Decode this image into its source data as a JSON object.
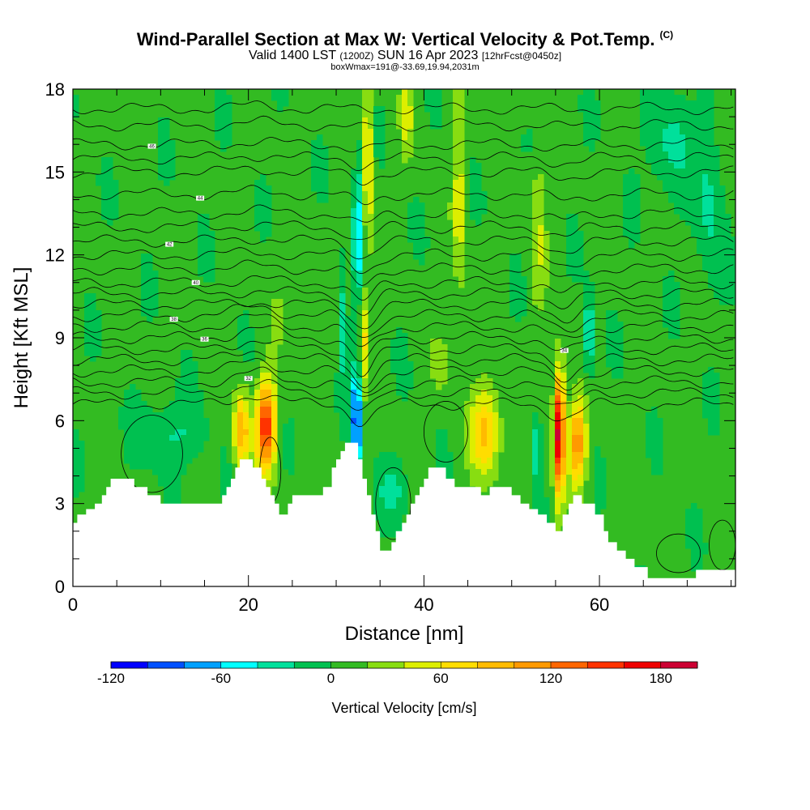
{
  "title": {
    "main": "Wind-Parallel Section at Max W: Vertical Velocity & Pot.Temp.",
    "copyright": "(C)",
    "valid_a": "Valid 1400 LST",
    "valid_z": "(1200Z)",
    "valid_b": "SUN 16 Apr 2023",
    "valid_fcst": "[12hrFcst@0450z]",
    "box": "boxWmax=191@-33.69,19.94,2031m"
  },
  "chart_data": {
    "type": "heatmap",
    "xlabel": "Distance [nm]",
    "ylabel": "Height [Kft MSL]",
    "xlim": [
      0,
      75.5
    ],
    "ylim": [
      0,
      18
    ],
    "x_ticks": [
      "0",
      "20",
      "40",
      "60"
    ],
    "y_ticks": [
      "0",
      "3",
      "6",
      "9",
      "12",
      "15",
      "18"
    ],
    "colorbar": {
      "title": "Vertical Velocity [cm/s]",
      "tick_labels": [
        "-120",
        "-60",
        "0",
        "60",
        "120",
        "180"
      ],
      "range": [
        -120,
        200
      ],
      "colors": [
        "#0000ff",
        "#0050ff",
        "#00a0ff",
        "#00ffff",
        "#00e09b",
        "#00c050",
        "#33bb22",
        "#88dd11",
        "#ddee00",
        "#ffdd00",
        "#ffbb00",
        "#ff9900",
        "#ff6600",
        "#ff3300",
        "#ee0000",
        "#cc0033"
      ]
    },
    "vv_features": [
      {
        "x": 32.3,
        "y": 6.0,
        "wx": 0.5,
        "wy": 2.0,
        "value": -120
      },
      {
        "x": 32.5,
        "y": 13.0,
        "wx": 0.6,
        "wy": 2.5,
        "value": -60
      },
      {
        "x": 33.6,
        "y": 15.5,
        "wx": 0.5,
        "wy": 3.5,
        "value": 70
      },
      {
        "x": 33.1,
        "y": 9.0,
        "wx": 0.5,
        "wy": 1.8,
        "value": 60
      },
      {
        "x": 22.0,
        "y": 5.8,
        "wx": 1.1,
        "wy": 1.6,
        "value": 150
      },
      {
        "x": 19.2,
        "y": 5.6,
        "wx": 0.9,
        "wy": 1.4,
        "value": 95
      },
      {
        "x": 47.0,
        "y": 5.6,
        "wx": 1.7,
        "wy": 1.6,
        "value": 80
      },
      {
        "x": 55.4,
        "y": 5.6,
        "wx": 0.6,
        "wy": 2.2,
        "value": 190
      },
      {
        "x": 57.5,
        "y": 5.2,
        "wx": 1.0,
        "wy": 1.5,
        "value": 110
      },
      {
        "x": 52.8,
        "y": 5.0,
        "wx": 0.5,
        "wy": 1.2,
        "value": -50
      },
      {
        "x": 58.8,
        "y": 9.0,
        "wx": 0.6,
        "wy": 1.5,
        "value": -55
      },
      {
        "x": 30.8,
        "y": 9.5,
        "wx": 0.4,
        "wy": 2.0,
        "value": -45
      },
      {
        "x": 11.0,
        "y": 5.5,
        "wx": 3.5,
        "wy": 1.2,
        "value": -30
      },
      {
        "x": 36.5,
        "y": 3.5,
        "wx": 1.8,
        "wy": 1.0,
        "value": -30
      },
      {
        "x": 68.0,
        "y": 16.0,
        "wx": 2.5,
        "wy": 2.0,
        "value": -30
      },
      {
        "x": 72.5,
        "y": 14.0,
        "wx": 1.5,
        "wy": 3.0,
        "value": -32
      },
      {
        "x": 44.0,
        "y": 14.0,
        "wx": 0.7,
        "wy": 3.5,
        "value": 45
      },
      {
        "x": 53.0,
        "y": 13.0,
        "wx": 0.8,
        "wy": 3.0,
        "value": 35
      },
      {
        "x": 38.0,
        "y": 17.0,
        "wx": 0.7,
        "wy": 1.5,
        "value": 40
      },
      {
        "x": 42.0,
        "y": 8.0,
        "wx": 1.0,
        "wy": 1.0,
        "value": 25
      },
      {
        "x": 25.0,
        "y": 10.0,
        "wx": 3.0,
        "wy": 2.0,
        "value": 10
      },
      {
        "x": 64.0,
        "y": 2.0,
        "wx": 2.0,
        "wy": 1.0,
        "value": 15
      }
    ],
    "terrain_profile": [
      [
        0,
        2.3
      ],
      [
        0.5,
        2.3
      ],
      [
        0.5,
        2.6
      ],
      [
        1.5,
        2.6
      ],
      [
        1.5,
        2.8
      ],
      [
        2.5,
        2.8
      ],
      [
        2.5,
        3.0
      ],
      [
        3.3,
        3.0
      ],
      [
        3.3,
        3.3
      ],
      [
        3.8,
        3.3
      ],
      [
        3.8,
        3.6
      ],
      [
        4.3,
        3.6
      ],
      [
        4.3,
        3.9
      ],
      [
        7,
        3.9
      ],
      [
        7,
        3.6
      ],
      [
        8.5,
        3.6
      ],
      [
        8.5,
        3.3
      ],
      [
        10,
        3.3
      ],
      [
        10,
        3.0
      ],
      [
        17,
        3.0
      ],
      [
        17,
        3.3
      ],
      [
        17.5,
        3.3
      ],
      [
        17.5,
        3.6
      ],
      [
        18,
        3.6
      ],
      [
        18,
        3.9
      ],
      [
        18.5,
        3.9
      ],
      [
        18.5,
        4.3
      ],
      [
        19,
        4.3
      ],
      [
        19,
        4.6
      ],
      [
        20.5,
        4.6
      ],
      [
        20.5,
        4.3
      ],
      [
        21.5,
        4.3
      ],
      [
        21.5,
        3.9
      ],
      [
        22,
        3.9
      ],
      [
        22,
        3.6
      ],
      [
        22.5,
        3.6
      ],
      [
        22.5,
        3.3
      ],
      [
        23,
        3.3
      ],
      [
        23,
        3.0
      ],
      [
        23.5,
        3.0
      ],
      [
        23.5,
        2.6
      ],
      [
        24.5,
        2.6
      ],
      [
        24.5,
        3.0
      ],
      [
        25,
        3.0
      ],
      [
        25,
        3.3
      ],
      [
        28.5,
        3.3
      ],
      [
        28.5,
        3.6
      ],
      [
        29.5,
        3.6
      ],
      [
        29.5,
        4.3
      ],
      [
        30,
        4.3
      ],
      [
        30,
        4.6
      ],
      [
        30.5,
        4.6
      ],
      [
        30.5,
        4.9
      ],
      [
        31,
        4.9
      ],
      [
        31,
        5.2
      ],
      [
        32.5,
        5.2
      ],
      [
        32.5,
        4.6
      ],
      [
        33,
        4.6
      ],
      [
        33,
        3.9
      ],
      [
        33.5,
        3.9
      ],
      [
        33.5,
        3.3
      ],
      [
        34,
        3.3
      ],
      [
        34,
        2.6
      ],
      [
        34.5,
        2.6
      ],
      [
        34.5,
        2.0
      ],
      [
        35,
        2.0
      ],
      [
        35,
        1.3
      ],
      [
        36.3,
        1.3
      ],
      [
        36.3,
        1.6
      ],
      [
        36.8,
        1.6
      ],
      [
        36.8,
        2.0
      ],
      [
        37.5,
        2.0
      ],
      [
        37.5,
        2.3
      ],
      [
        38,
        2.3
      ],
      [
        38,
        2.6
      ],
      [
        38.5,
        2.6
      ],
      [
        38.5,
        3.0
      ],
      [
        39,
        3.0
      ],
      [
        39,
        3.3
      ],
      [
        39.5,
        3.3
      ],
      [
        39.5,
        3.6
      ],
      [
        40,
        3.6
      ],
      [
        40,
        3.9
      ],
      [
        40.5,
        3.9
      ],
      [
        40.5,
        4.3
      ],
      [
        42.5,
        4.3
      ],
      [
        42.5,
        3.9
      ],
      [
        43.5,
        3.9
      ],
      [
        43.5,
        3.6
      ],
      [
        46.5,
        3.6
      ],
      [
        46.5,
        3.3
      ],
      [
        47.5,
        3.3
      ],
      [
        47.5,
        3.6
      ],
      [
        50,
        3.6
      ],
      [
        50,
        3.3
      ],
      [
        51,
        3.3
      ],
      [
        51,
        3.0
      ],
      [
        52,
        3.0
      ],
      [
        52,
        2.8
      ],
      [
        53,
        2.8
      ],
      [
        53,
        2.6
      ],
      [
        54,
        2.6
      ],
      [
        54,
        2.3
      ],
      [
        55,
        2.3
      ],
      [
        55,
        2.0
      ],
      [
        55.8,
        2.0
      ],
      [
        55.8,
        2.6
      ],
      [
        56.5,
        2.6
      ],
      [
        56.5,
        3.0
      ],
      [
        57,
        3.0
      ],
      [
        57,
        3.3
      ],
      [
        58,
        3.3
      ],
      [
        58,
        3.0
      ],
      [
        59.5,
        3.0
      ],
      [
        59.5,
        2.6
      ],
      [
        60.5,
        2.6
      ],
      [
        60.5,
        2.0
      ],
      [
        61,
        2.0
      ],
      [
        61,
        1.6
      ],
      [
        62,
        1.6
      ],
      [
        62,
        1.3
      ],
      [
        63,
        1.3
      ],
      [
        63,
        1.0
      ],
      [
        64,
        1.0
      ],
      [
        64,
        0.7
      ],
      [
        65.5,
        0.7
      ],
      [
        65.5,
        0.3
      ],
      [
        71,
        0.3
      ],
      [
        71,
        0.6
      ],
      [
        75,
        0.6
      ],
      [
        75.5,
        0.6
      ]
    ],
    "isentropes": [
      {
        "base": 6.6,
        "label": null
      },
      {
        "base": 7.0,
        "label": null
      },
      {
        "base": 7.4,
        "label": "32",
        "lx": 20
      },
      {
        "base": 7.8,
        "label": null
      },
      {
        "base": 8.2,
        "label": null
      },
      {
        "base": 8.6,
        "label": "34",
        "lx": 56
      },
      {
        "base": 9.0,
        "label": "36",
        "lx": 15
      },
      {
        "base": 9.4,
        "label": null
      },
      {
        "base": 9.8,
        "label": "38",
        "lx": 11.5
      },
      {
        "base": 10.2,
        "label": null
      },
      {
        "base": 10.6,
        "label": null
      },
      {
        "base": 11.0,
        "label": "40",
        "lx": 14
      },
      {
        "base": 11.5,
        "label": null
      },
      {
        "base": 12.0,
        "label": null
      },
      {
        "base": 12.5,
        "label": "42",
        "lx": 11
      },
      {
        "base": 13.0,
        "label": null
      },
      {
        "base": 13.5,
        "label": null
      },
      {
        "base": 14.2,
        "label": "44",
        "lx": 14.5
      },
      {
        "base": 15.0,
        "label": null
      },
      {
        "base": 15.5,
        "label": null
      },
      {
        "base": 16.0,
        "label": "46",
        "lx": 9
      },
      {
        "base": 16.7,
        "label": null
      },
      {
        "base": 17.3,
        "label": null
      }
    ]
  }
}
